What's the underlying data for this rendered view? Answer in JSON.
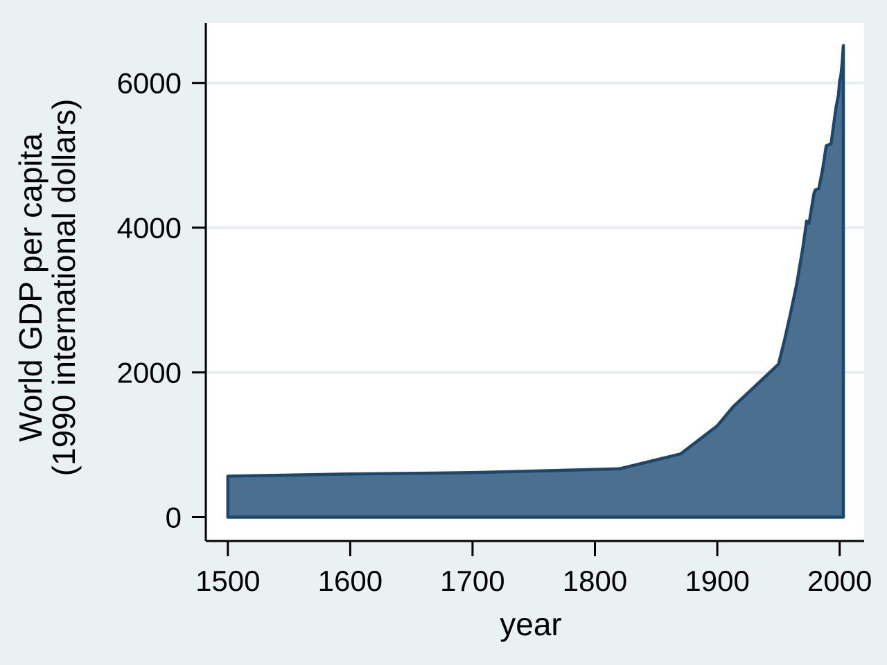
{
  "colors": {
    "figure_background": "#eaf1f3",
    "plot_background": "#ffffff",
    "gridline": "#e6eef1",
    "axis": "#000000",
    "text": "#000000",
    "area_fill": "#4b6f8f",
    "area_stroke": "#1a476f"
  },
  "chart_data": {
    "type": "area",
    "title": "",
    "xlabel": "year",
    "ylabel_lines": [
      "World GDP per capita",
      "(1990 international dollars)"
    ],
    "x_ticks": [
      1500,
      1600,
      1700,
      1800,
      1900,
      2000
    ],
    "y_ticks": [
      0,
      2000,
      4000,
      6000
    ],
    "xlim": [
      1482,
      2020
    ],
    "ylim": [
      -330,
      6830
    ],
    "baseline": 0,
    "grid": "horizontal gridlines at 2000, 4000, 6000 only",
    "legend": "none",
    "series": [
      {
        "name": "World GDP per capita (1990 international dollars)",
        "points": [
          [
            1500,
            566
          ],
          [
            1600,
            596
          ],
          [
            1700,
            615
          ],
          [
            1820,
            667
          ],
          [
            1870,
            873
          ],
          [
            1900,
            1262
          ],
          [
            1913,
            1526
          ],
          [
            1950,
            2113
          ],
          [
            1955,
            2450
          ],
          [
            1960,
            2830
          ],
          [
            1965,
            3230
          ],
          [
            1970,
            3730
          ],
          [
            1973,
            4091
          ],
          [
            1975,
            4060
          ],
          [
            1979,
            4470
          ],
          [
            1980,
            4520
          ],
          [
            1983,
            4540
          ],
          [
            1986,
            4800
          ],
          [
            1989,
            5130
          ],
          [
            1993,
            5160
          ],
          [
            1997,
            5660
          ],
          [
            1999,
            5830
          ],
          [
            2000,
            6030
          ],
          [
            2001,
            6100
          ],
          [
            2002,
            6260
          ],
          [
            2003,
            6516
          ]
        ]
      }
    ]
  }
}
